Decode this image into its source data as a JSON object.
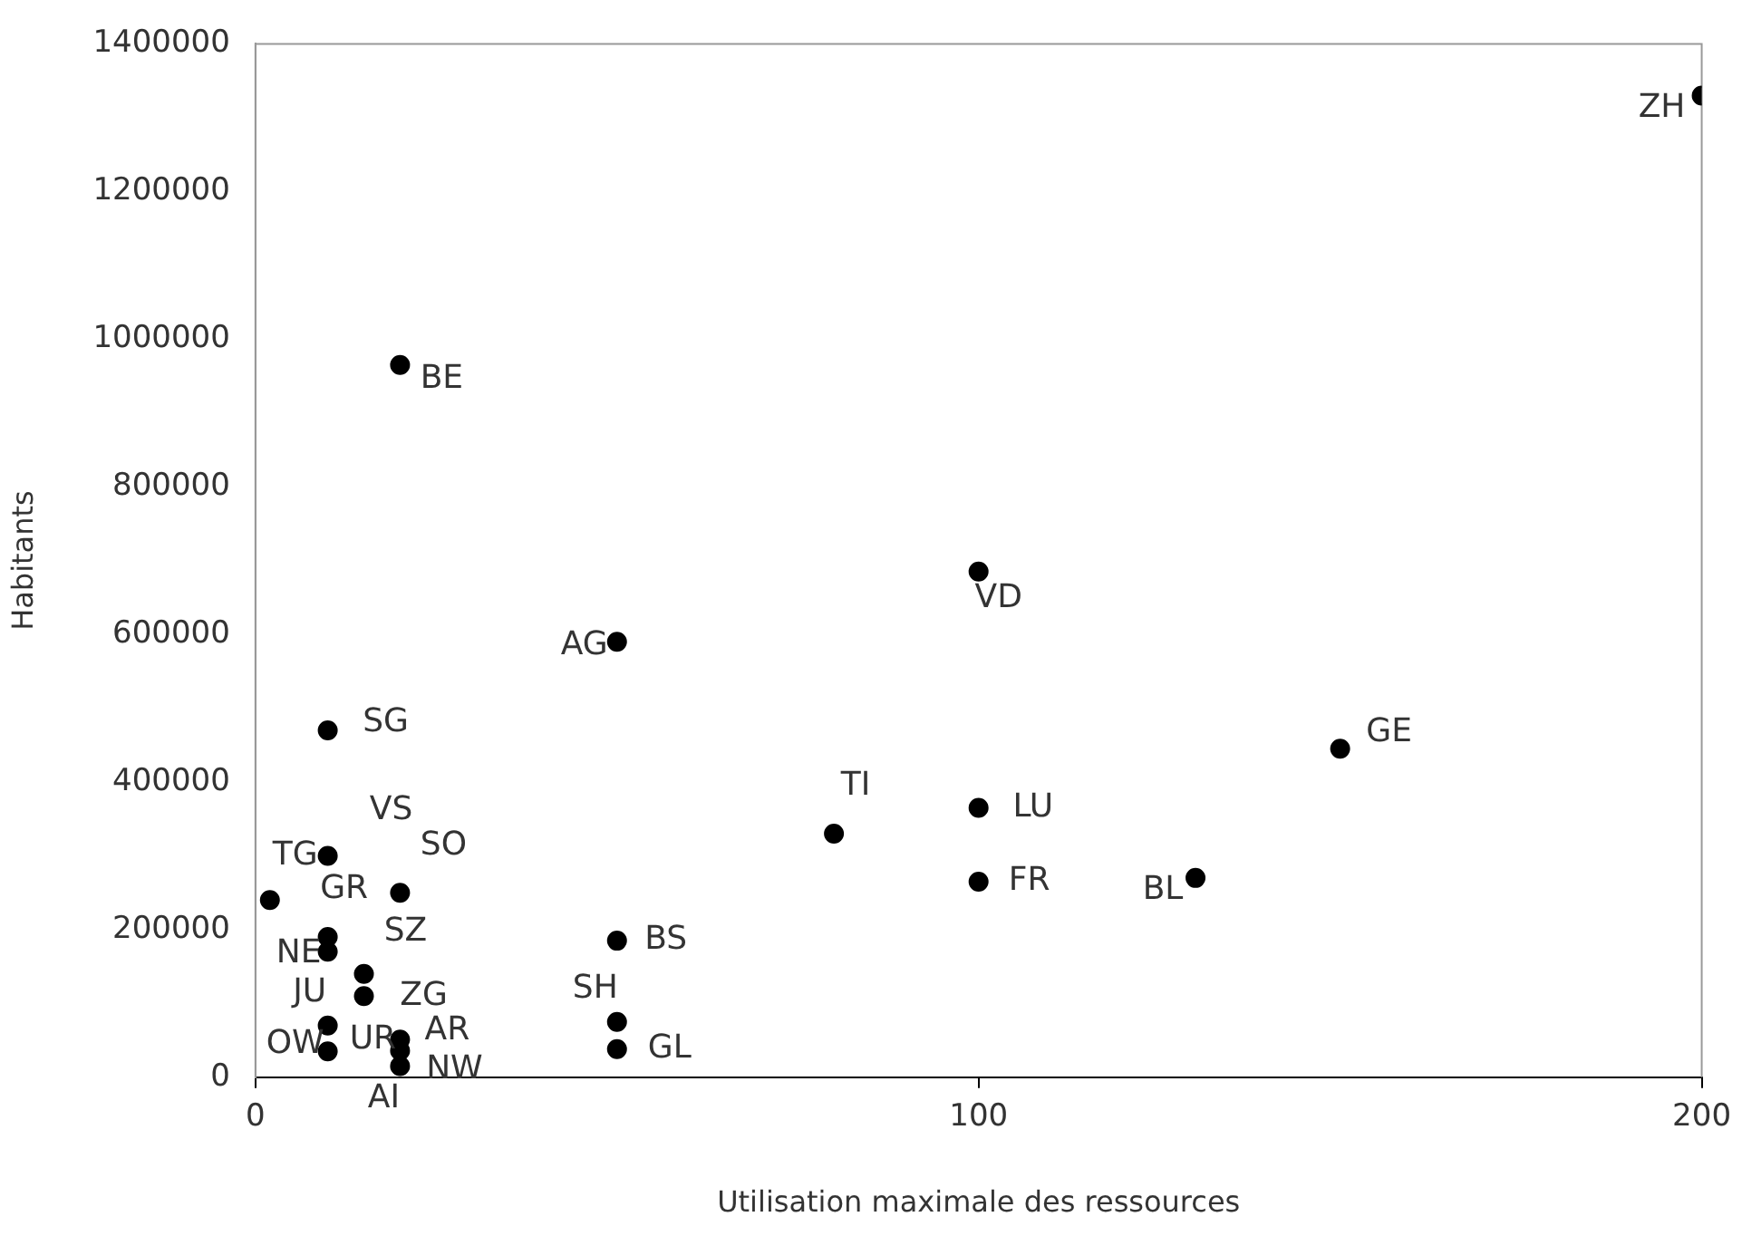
{
  "chart_data": {
    "type": "scatter",
    "xlabel": "Utilisation maximale des ressources",
    "ylabel": "Habitants",
    "x": [
      200,
      20,
      50,
      100,
      10,
      150,
      80,
      100,
      100,
      130,
      10,
      2,
      20,
      10,
      10,
      15,
      15,
      10,
      10,
      20,
      20,
      20,
      50,
      50,
      50
    ],
    "values": [
      1330000,
      965000,
      590000,
      685000,
      470000,
      445000,
      330000,
      365000,
      265000,
      270000,
      300000,
      240000,
      250000,
      190000,
      170000,
      140000,
      110000,
      70000,
      35000,
      51000,
      36000,
      15000,
      185000,
      75000,
      38000
    ],
    "color": "#000000",
    "marker": "circle",
    "grid": false,
    "legend": false,
    "xlim": [
      0,
      200
    ],
    "xticks": [
      0,
      100,
      200
    ],
    "ylim": [
      0,
      1400000
    ],
    "yticks": [
      0,
      200000,
      400000,
      600000,
      800000,
      1000000,
      1200000,
      1400000
    ],
    "annotations": [
      {
        "text": "ZH",
        "x": 200,
        "y": 1330000
      },
      {
        "text": "BE",
        "x": 20,
        "y": 965000
      },
      {
        "text": "AG",
        "x": 50,
        "y": 590000
      },
      {
        "text": "VD",
        "x": 100,
        "y": 685000
      },
      {
        "text": "SG",
        "x": 10,
        "y": 470000
      },
      {
        "text": "GE",
        "x": 150,
        "y": 445000
      },
      {
        "text": "TI",
        "x": 80,
        "y": 330000
      },
      {
        "text": "LU",
        "x": 100,
        "y": 365000
      },
      {
        "text": "FR",
        "x": 100,
        "y": 265000
      },
      {
        "text": "BL",
        "x": 130,
        "y": 270000
      },
      {
        "text": "VS",
        "x": 10,
        "y": 300000
      },
      {
        "text": "TG",
        "x": 10,
        "y": 300000
      },
      {
        "text": "SO",
        "x": 20,
        "y": 250000
      },
      {
        "text": "GR",
        "x": 10,
        "y": 190000
      },
      {
        "text": "NE",
        "x": 10,
        "y": 170000
      },
      {
        "text": "SZ",
        "x": 15,
        "y": 140000
      },
      {
        "text": "ZG",
        "x": 15,
        "y": 110000
      },
      {
        "text": "JU",
        "x": 10,
        "y": 70000
      },
      {
        "text": "SH",
        "x": 50,
        "y": 75000
      },
      {
        "text": "OW",
        "x": 10,
        "y": 35000
      },
      {
        "text": "UR",
        "x": 20,
        "y": 36000
      },
      {
        "text": "AR",
        "x": 20,
        "y": 51000
      },
      {
        "text": "NW",
        "x": 20,
        "y": 15000
      },
      {
        "text": "AI",
        "x": 20,
        "y": 15000
      },
      {
        "text": "BS",
        "x": 50,
        "y": 185000
      },
      {
        "text": "GL",
        "x": 50,
        "y": 38000
      }
    ]
  }
}
